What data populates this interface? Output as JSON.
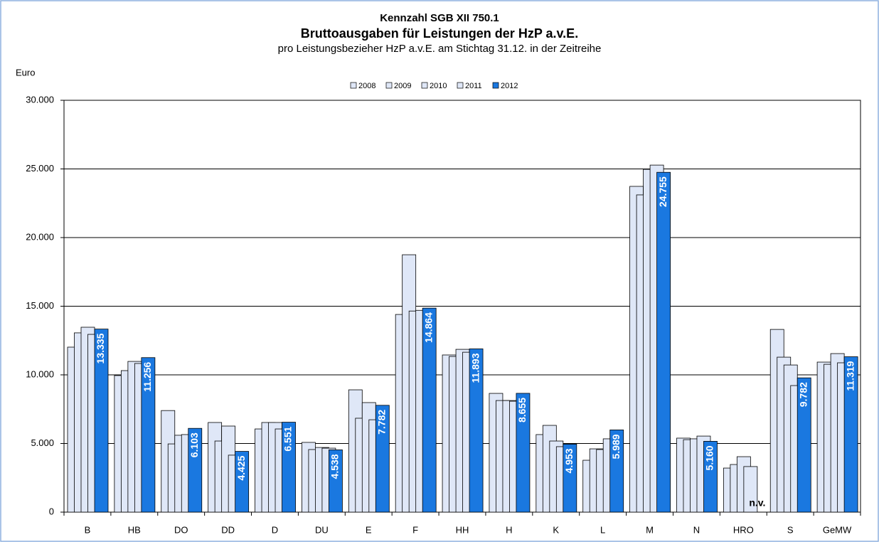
{
  "chart_data": {
    "type": "bar",
    "title": "Kennzahl SGB XII 750.1",
    "subtitle": "Bruttoausgaben für Leistungen der HzP a.v.E.",
    "caption": "pro Leistungsbezieher HzP a.v.E. am Stichtag 31.12. in der Zeitreihe",
    "y_label": "Euro",
    "categories": [
      "B",
      "HB",
      "DO",
      "DD",
      "D",
      "DU",
      "E",
      "F",
      "HH",
      "H",
      "K",
      "L",
      "M",
      "N",
      "HRO",
      "S",
      "GeMW"
    ],
    "series": [
      {
        "name": "2008",
        "color": "#dfe7f7",
        "values": [
          12020,
          9950,
          7400,
          6530,
          6060,
          5080,
          8910,
          14400,
          11450,
          8650,
          5650,
          3780,
          23730,
          5390,
          3210,
          13310,
          10930
        ]
      },
      {
        "name": "2009",
        "color": "#dfe7f7",
        "values": [
          13060,
          10310,
          4970,
          5180,
          6530,
          4560,
          6840,
          18750,
          11340,
          8130,
          6320,
          4610,
          23110,
          5280,
          3470,
          11290,
          10770
        ]
      },
      {
        "name": "2010",
        "color": "#dfe7f7",
        "values": [
          13470,
          10980,
          5600,
          6270,
          6530,
          4710,
          7980,
          14650,
          11860,
          8130,
          5180,
          4560,
          24970,
          5340,
          4040,
          10720,
          11550
        ]
      },
      {
        "name": "2011",
        "color": "#dfe7f7",
        "values": [
          12950,
          10830,
          5650,
          4150,
          6060,
          4660,
          6730,
          14700,
          11650,
          8080,
          4770,
          5340,
          25280,
          5540,
          3320,
          9220,
          10880
        ]
      },
      {
        "name": "2012",
        "color": "#1a78e0",
        "values": [
          13335,
          11256,
          6103,
          4425,
          6551,
          4538,
          7782,
          14864,
          11893,
          8655,
          4953,
          5989,
          24755,
          5160,
          null,
          9782,
          11319
        ],
        "value_labels": [
          "13.335",
          "11.256",
          "6.103",
          "4.425",
          "6.551",
          "4.538",
          "7.782",
          "14.864",
          "11.893",
          "8.655",
          "4.953",
          "5.989",
          "24.755",
          "5.160",
          "n.v.",
          "9.782",
          "11.319"
        ]
      }
    ],
    "ylim": [
      0,
      30000
    ],
    "yticks": [
      0,
      {
        "value": 5000,
        "label": "5.000"
      },
      {
        "value": 10000,
        "label": "10.000"
      },
      {
        "value": 15000,
        "label": "15.000"
      },
      {
        "value": 20000,
        "label": "20.000"
      },
      {
        "value": 25000,
        "label": "25.000"
      },
      {
        "value": 30000,
        "label": "30.000"
      }
    ],
    "grid": true,
    "legend": "top"
  }
}
